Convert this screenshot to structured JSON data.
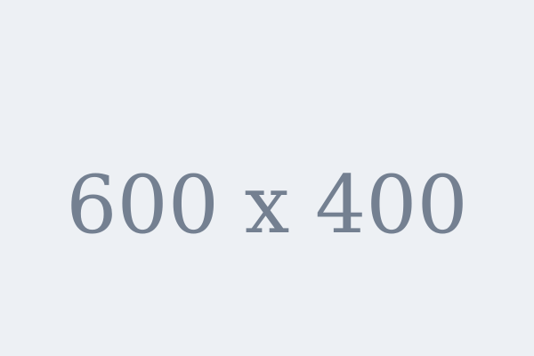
{
  "placeholder": {
    "label": "600 x 400",
    "background_color": "#edf0f4",
    "text_color": "#748091"
  }
}
